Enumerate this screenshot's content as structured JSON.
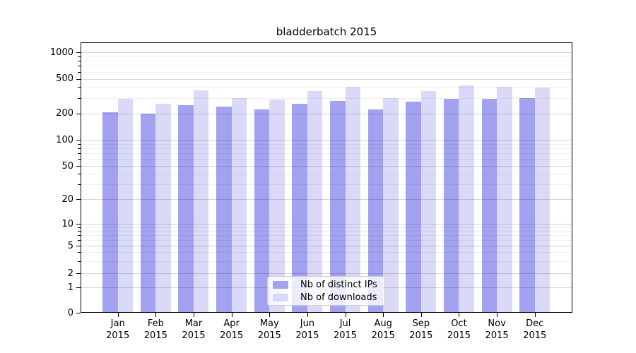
{
  "chart_data": {
    "type": "bar",
    "title": "bladderbatch 2015",
    "categories": [
      "Jan",
      "Feb",
      "Mar",
      "Apr",
      "May",
      "Jun",
      "Jul",
      "Aug",
      "Sep",
      "Oct",
      "Nov",
      "Dec"
    ],
    "year": "2015",
    "series": [
      {
        "name": "Nb of distinct IPs",
        "color": "#a2a2f0",
        "values": [
          205,
          200,
          250,
          238,
          220,
          258,
          278,
          220,
          272,
          295,
          292,
          298
        ]
      },
      {
        "name": "Nb of downloads",
        "color": "#dadaf8",
        "values": [
          295,
          258,
          368,
          298,
          288,
          358,
          405,
          298,
          362,
          415,
          400,
          397
        ]
      }
    ],
    "y_axis": {
      "scale": "symlog",
      "ylim": [
        0,
        1000
      ],
      "major_ticks": [
        0,
        1,
        2,
        5,
        10,
        20,
        50,
        100,
        200,
        500,
        1000
      ],
      "minor_ticks": [
        3,
        4,
        6,
        7,
        8,
        9,
        30,
        40,
        60,
        70,
        80,
        90,
        300,
        400,
        600,
        700,
        800,
        900
      ]
    },
    "xlabel": "",
    "ylabel": "",
    "grid": "on",
    "legend_position": "bottom-center",
    "colors": {
      "grid_major": "rgba(0,0,0,0.16)",
      "grid_minor": "rgba(0,0,0,0.055)",
      "axis": "#000000",
      "background": "#ffffff"
    }
  }
}
